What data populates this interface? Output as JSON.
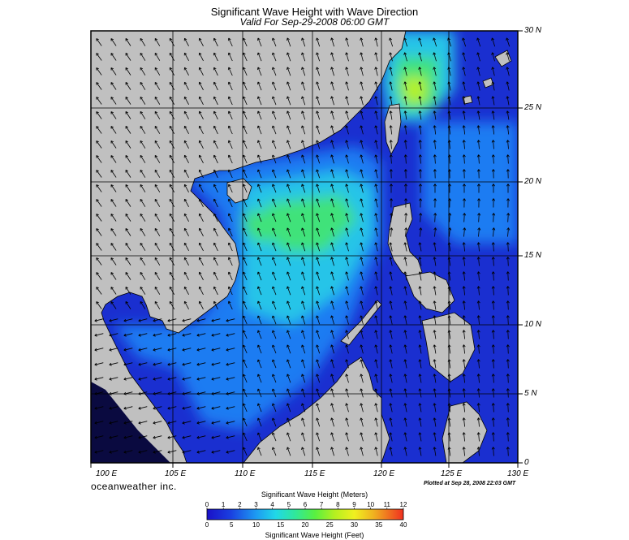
{
  "header": {
    "title": "Significant Wave Height with Wave Direction",
    "subtitle": "Valid For Sep-29-2008 06:00 GMT"
  },
  "map": {
    "lat_labels": [
      "30 N",
      "25 N",
      "20 N",
      "15 N",
      "10 N",
      "5 N",
      "0"
    ],
    "lon_labels": [
      "100 E",
      "105 E",
      "110 E",
      "115 E",
      "120 E",
      "125 E",
      "130 E"
    ],
    "land_color": "#c0c0c0",
    "sea_colors": {
      "calm": "#1a2fd0",
      "moderate": "#1f7bf2",
      "elevated": "#25c4e8",
      "high": "#3fe27a",
      "peak": "#b6f222"
    }
  },
  "footer": {
    "brand": "oceanweather inc.",
    "plotted": "Plotted at Sep 28, 2008 22:03 GMT"
  },
  "colorbar": {
    "title_top": "Significant Wave Height (Meters)",
    "title_bottom": "Significant Wave Height (Feet)",
    "meters_ticks": [
      "0",
      "1",
      "2",
      "3",
      "4",
      "5",
      "6",
      "7",
      "8",
      "9",
      "10",
      "11",
      "12"
    ],
    "feet_ticks": [
      "0",
      "5",
      "10",
      "15",
      "20",
      "25",
      "30",
      "35",
      "40"
    ]
  }
}
